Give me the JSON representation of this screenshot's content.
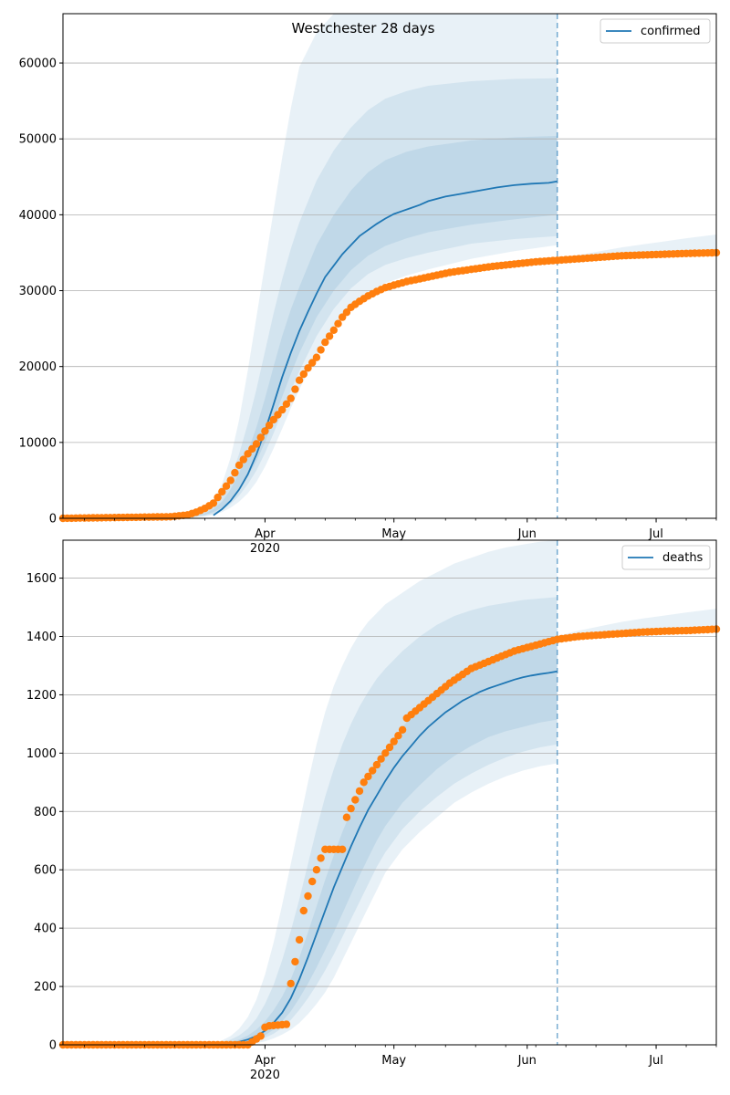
{
  "colors": {
    "model": "#1f77b4",
    "observed": "#ff7f0e",
    "band": "#1f77b4",
    "grid": "#b0b0b0",
    "forecast_line": "#1f77b4"
  },
  "chart_data": [
    {
      "type": "line",
      "title": "Westchester 28 days",
      "xaxis": {
        "unit": "day-of-year 2020",
        "range": [
          45,
          197
        ],
        "ticks": [
          {
            "x": 92,
            "label": "Apr",
            "sublabel": "2020"
          },
          {
            "x": 122,
            "label": "May",
            "sublabel": ""
          },
          {
            "x": 153,
            "label": "Jun",
            "sublabel": ""
          },
          {
            "x": 183,
            "label": "Jul",
            "sublabel": ""
          }
        ]
      },
      "ylim": [
        0,
        66500
      ],
      "yticks": [
        0,
        10000,
        20000,
        30000,
        40000,
        50000,
        60000
      ],
      "grid": "horizontal",
      "legend": {
        "position": "top-right",
        "entries": [
          "confirmed"
        ]
      },
      "forecast_start_x": 160,
      "series": [
        {
          "name": "confirmed",
          "kind": "model-median",
          "x": [
            80,
            82,
            84,
            86,
            88,
            90,
            92,
            94,
            96,
            98,
            100,
            102,
            104,
            106,
            108,
            110,
            112,
            114,
            116,
            118,
            120,
            122,
            124,
            126,
            128,
            130,
            134,
            138,
            142,
            146,
            150,
            154,
            158,
            160
          ],
          "y": [
            400,
            1200,
            2300,
            3800,
            5800,
            8400,
            11500,
            15000,
            18600,
            21800,
            24700,
            27200,
            29600,
            31800,
            33300,
            34800,
            36000,
            37200,
            38000,
            38800,
            39500,
            40100,
            40500,
            40900,
            41300,
            41800,
            42400,
            42800,
            43200,
            43600,
            43900,
            44100,
            44200,
            44400
          ]
        },
        {
          "kind": "observed",
          "x_start": 45,
          "x_end": 197,
          "anchors_x": [
            45,
            70,
            74,
            76,
            78,
            80,
            82,
            84,
            86,
            88,
            90,
            92,
            94,
            96,
            98,
            100,
            102,
            104,
            106,
            108,
            110,
            112,
            114,
            116,
            118,
            120,
            125,
            130,
            135,
            140,
            145,
            150,
            155,
            160,
            165,
            170,
            175,
            180,
            185,
            190,
            197
          ],
          "anchors_y": [
            0,
            200,
            450,
            800,
            1300,
            2000,
            3500,
            5000,
            7000,
            8500,
            9800,
            11500,
            13000,
            14300,
            15800,
            18200,
            19800,
            21200,
            23200,
            24800,
            26500,
            27800,
            28600,
            29300,
            29900,
            30400,
            31200,
            31800,
            32400,
            32800,
            33200,
            33500,
            33800,
            34000,
            34200,
            34400,
            34600,
            34700,
            34800,
            34900,
            35000
          ]
        }
      ],
      "bands": [
        {
          "x": [
            70,
            75,
            78,
            80,
            82,
            84,
            86,
            88,
            90,
            92,
            94,
            96,
            98,
            100,
            104,
            108,
            112,
            116,
            120,
            125,
            130,
            140,
            150,
            160
          ],
          "lower": [
            0,
            100,
            250,
            450,
            800,
            1400,
            2200,
            3300,
            4800,
            6800,
            9200,
            11800,
            14500,
            17000,
            21500,
            25200,
            28000,
            29800,
            31000,
            32000,
            32800,
            34200,
            35200,
            36000
          ],
          "upper": [
            0,
            400,
            1200,
            2500,
            4500,
            8000,
            13000,
            19500,
            26500,
            33500,
            40500,
            47500,
            54000,
            59500,
            64000,
            66500,
            67000,
            67000,
            67000,
            67000,
            67000,
            67000,
            67000,
            67000
          ]
        },
        {
          "x": [
            70,
            75,
            78,
            80,
            82,
            84,
            86,
            88,
            90,
            92,
            94,
            96,
            98,
            100,
            104,
            108,
            112,
            116,
            120,
            125,
            130,
            140,
            150,
            160
          ],
          "lower": [
            0,
            150,
            350,
            600,
            1100,
            1900,
            3000,
            4500,
            6300,
            8600,
            11200,
            14000,
            16800,
            19400,
            24000,
            27600,
            30300,
            32200,
            33400,
            34300,
            35000,
            36200,
            36800,
            37200
          ],
          "upper": [
            0,
            300,
            800,
            1600,
            3000,
            5300,
            8500,
            12500,
            17000,
            22000,
            27000,
            31500,
            35500,
            39000,
            44500,
            48500,
            51500,
            53800,
            55300,
            56300,
            57000,
            57600,
            57900,
            58000
          ]
        },
        {
          "x": [
            70,
            75,
            78,
            80,
            82,
            84,
            86,
            88,
            90,
            92,
            94,
            96,
            98,
            100,
            104,
            108,
            112,
            116,
            120,
            125,
            130,
            140,
            150,
            160
          ],
          "lower": [
            0,
            200,
            450,
            800,
            1400,
            2400,
            3700,
            5500,
            7500,
            10000,
            13000,
            16000,
            19000,
            21800,
            26500,
            30000,
            32700,
            34600,
            35900,
            36900,
            37700,
            38700,
            39400,
            40000
          ],
          "upper": [
            0,
            250,
            650,
            1200,
            2200,
            3800,
            6000,
            8800,
            12000,
            15800,
            20000,
            24000,
            27500,
            30500,
            36000,
            40000,
            43200,
            45600,
            47200,
            48300,
            49000,
            49800,
            50200,
            50400
          ]
        },
        {
          "x": [
            158,
            165,
            170,
            175,
            180,
            185,
            190,
            197
          ],
          "lower": [
            33800,
            34000,
            34200,
            34300,
            34400,
            34500,
            34600,
            34800
          ],
          "upper": [
            34000,
            34700,
            35200,
            35700,
            36100,
            36500,
            36900,
            37400
          ]
        }
      ]
    },
    {
      "type": "line",
      "title": "",
      "xaxis": {
        "unit": "day-of-year 2020",
        "range": [
          45,
          197
        ],
        "ticks": [
          {
            "x": 92,
            "label": "Apr",
            "sublabel": "2020"
          },
          {
            "x": 122,
            "label": "May",
            "sublabel": ""
          },
          {
            "x": 153,
            "label": "Jun",
            "sublabel": ""
          },
          {
            "x": 183,
            "label": "Jul",
            "sublabel": ""
          }
        ]
      },
      "ylim": [
        0,
        1730
      ],
      "yticks": [
        0,
        200,
        400,
        600,
        800,
        1000,
        1200,
        1400,
        1600
      ],
      "grid": "horizontal",
      "legend": {
        "position": "top-right",
        "entries": [
          "deaths"
        ]
      },
      "forecast_start_x": 160,
      "series": [
        {
          "name": "deaths",
          "kind": "model-median",
          "x": [
            80,
            82,
            84,
            86,
            88,
            90,
            92,
            94,
            96,
            98,
            100,
            102,
            104,
            106,
            108,
            110,
            112,
            114,
            116,
            118,
            120,
            122,
            124,
            126,
            128,
            130,
            132,
            134,
            136,
            138,
            140,
            142,
            144,
            146,
            148,
            150,
            152,
            154,
            156,
            158,
            160
          ],
          "y": [
            0,
            2,
            5,
            10,
            18,
            30,
            48,
            75,
            110,
            160,
            225,
            300,
            380,
            460,
            540,
            610,
            680,
            745,
            805,
            855,
            905,
            950,
            990,
            1025,
            1060,
            1090,
            1115,
            1140,
            1160,
            1180,
            1195,
            1210,
            1222,
            1232,
            1242,
            1252,
            1260,
            1266,
            1271,
            1275,
            1280
          ]
        },
        {
          "kind": "observed",
          "x_start": 45,
          "x_end": 197,
          "anchors_x": [
            45,
            88,
            91,
            92,
            93,
            97,
            98,
            99,
            100,
            101,
            102,
            103,
            104,
            105,
            106,
            107,
            108,
            110,
            111,
            112,
            113,
            114,
            115,
            120,
            124,
            125,
            130,
            135,
            140,
            145,
            150,
            155,
            160,
            165,
            170,
            175,
            180,
            185,
            190,
            197
          ],
          "anchors_y": [
            0,
            0,
            30,
            60,
            65,
            70,
            210,
            285,
            360,
            460,
            510,
            560,
            600,
            640,
            670,
            670,
            670,
            670,
            780,
            810,
            840,
            870,
            900,
            1000,
            1080,
            1120,
            1180,
            1240,
            1290,
            1320,
            1350,
            1370,
            1390,
            1400,
            1405,
            1410,
            1415,
            1418,
            1420,
            1425
          ]
        }
      ],
      "bands": [
        {
          "x": [
            80,
            84,
            86,
            88,
            90,
            92,
            94,
            96,
            98,
            100,
            102,
            104,
            106,
            108,
            110,
            112,
            114,
            116,
            118,
            120,
            124,
            128,
            132,
            136,
            140,
            144,
            148,
            152,
            156,
            160
          ],
          "lower": [
            0,
            0,
            0,
            2,
            6,
            12,
            22,
            35,
            52,
            75,
            105,
            140,
            180,
            230,
            290,
            350,
            410,
            470,
            530,
            590,
            670,
            730,
            780,
            830,
            865,
            895,
            920,
            940,
            955,
            965
          ],
          "upper": [
            0,
            30,
            55,
            95,
            155,
            240,
            350,
            480,
            620,
            760,
            900,
            1030,
            1140,
            1230,
            1300,
            1360,
            1410,
            1450,
            1480,
            1510,
            1550,
            1590,
            1620,
            1650,
            1670,
            1690,
            1705,
            1715,
            1725,
            1730
          ]
        },
        {
          "x": [
            80,
            84,
            86,
            88,
            90,
            92,
            94,
            96,
            98,
            100,
            102,
            104,
            106,
            108,
            110,
            112,
            114,
            116,
            118,
            120,
            124,
            128,
            132,
            136,
            140,
            144,
            148,
            152,
            156,
            160
          ],
          "lower": [
            0,
            2,
            4,
            8,
            14,
            24,
            38,
            58,
            85,
            120,
            160,
            205,
            255,
            310,
            370,
            430,
            490,
            550,
            610,
            660,
            740,
            800,
            850,
            895,
            930,
            960,
            985,
            1005,
            1020,
            1030
          ],
          "upper": [
            0,
            18,
            32,
            55,
            90,
            140,
            205,
            290,
            390,
            500,
            620,
            740,
            850,
            945,
            1030,
            1100,
            1160,
            1210,
            1255,
            1290,
            1350,
            1400,
            1440,
            1470,
            1490,
            1505,
            1515,
            1525,
            1530,
            1535
          ]
        },
        {
          "x": [
            80,
            84,
            86,
            88,
            90,
            92,
            94,
            96,
            98,
            100,
            102,
            104,
            106,
            108,
            110,
            112,
            114,
            116,
            118,
            120,
            124,
            128,
            132,
            136,
            140,
            144,
            148,
            152,
            156,
            160
          ],
          "lower": [
            0,
            3,
            6,
            12,
            20,
            33,
            52,
            80,
            115,
            160,
            210,
            265,
            325,
            385,
            450,
            515,
            580,
            640,
            700,
            750,
            830,
            890,
            945,
            990,
            1025,
            1055,
            1075,
            1090,
            1105,
            1115
          ],
          "upper": [
            0,
            10,
            18,
            32,
            52,
            80,
            118,
            165,
            225,
            300,
            385,
            475,
            565,
            650,
            730,
            800,
            865,
            920,
            970,
            1015,
            1090,
            1155,
            1210,
            1255,
            1290,
            1320,
            1345,
            1365,
            1380,
            1395
          ]
        },
        {
          "x": [
            158,
            165,
            170,
            175,
            180,
            185,
            190,
            197
          ],
          "lower": [
            1385,
            1395,
            1400,
            1405,
            1410,
            1412,
            1415,
            1418
          ],
          "upper": [
            1395,
            1420,
            1435,
            1450,
            1462,
            1472,
            1482,
            1495
          ]
        }
      ]
    }
  ]
}
